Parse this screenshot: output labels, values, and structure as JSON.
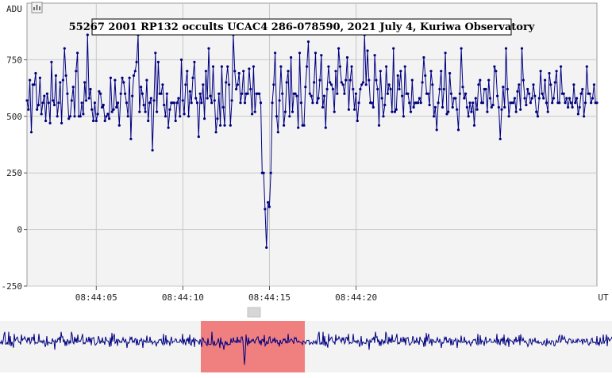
{
  "chart_data": {
    "type": "line",
    "title": "55267 2001 RP132 occults UCAC4 286-078590, 2021 July 4, Kuriwa Observatory",
    "ylabel": "ADU",
    "xlabel": "UT",
    "ylim": [
      -250,
      1000
    ],
    "y_ticks": [
      -250,
      0,
      250,
      500,
      750
    ],
    "x_tick_labels": [
      "08:44:05",
      "08:44:10",
      "08:44:15",
      "08:44:20"
    ],
    "grid": true,
    "colors": {
      "series": "#000080",
      "plot_bg": "#f3f3f3",
      "overview_bg": "#f3f3f3",
      "selection": "#f08080"
    },
    "series": [
      {
        "x_start_seconds": 1.0,
        "x_step_seconds": 0.0833,
        "values": [
          570,
          530,
          660,
          430,
          640,
          640,
          690,
          530,
          550,
          670,
          510,
          560,
          590,
          480,
          600,
          560,
          470,
          740,
          570,
          550,
          680,
          500,
          560,
          650,
          470,
          660,
          800,
          680,
          600,
          490,
          500,
          570,
          630,
          500,
          700,
          780,
          500,
          500,
          560,
          510,
          650,
          570,
          860,
          580,
          620,
          530,
          480,
          560,
          480,
          510,
          610,
          600,
          540,
          550,
          480,
          500,
          510,
          490,
          670,
          520,
          530,
          660,
          540,
          560,
          460,
          600,
          670,
          650,
          600,
          560,
          500,
          670,
          400,
          590,
          680,
          700,
          740,
          860,
          520,
          630,
          600,
          550,
          520,
          660,
          480,
          560,
          580,
          350,
          570,
          780,
          520,
          740,
          600,
          600,
          640,
          550,
          500,
          600,
          450,
          530,
          560,
          560,
          560,
          480,
          560,
          580,
          500,
          750,
          570,
          510,
          640,
          700,
          500,
          610,
          560,
          670,
          740,
          580,
          560,
          410,
          600,
          560,
          640,
          490,
          700,
          580,
          800,
          590,
          560,
          720,
          570,
          430,
          490,
          600,
          460,
          720,
          540,
          460,
          650,
          720,
          640,
          460,
          570,
          860,
          700,
          620,
          640,
          690,
          560,
          600,
          700,
          560,
          600,
          600,
          710,
          620,
          510,
          720,
          520,
          600,
          600,
          600,
          560,
          250,
          250,
          90,
          -80,
          120,
          100,
          250,
          560,
          640,
          780,
          500,
          430,
          570,
          720,
          600,
          460,
          520,
          650,
          700,
          500,
          760,
          520,
          600,
          600,
          590,
          450,
          780,
          560,
          460,
          460,
          630,
          720,
          830,
          600,
          590,
          560,
          650,
          780,
          560,
          580,
          660,
          770,
          540,
          590,
          450,
          620,
          720,
          650,
          640,
          620,
          520,
          700,
          600,
          800,
          720,
          650,
          640,
          600,
          660,
          760,
          530,
          660,
          720,
          620,
          530,
          600,
          480,
          560,
          620,
          640,
          650,
          860,
          640,
          790,
          660,
          560,
          560,
          540,
          770,
          660,
          620,
          460,
          700,
          580,
          500,
          550,
          720,
          600,
          640,
          620,
          520,
          800,
          520,
          530,
          680,
          620,
          700,
          590,
          500,
          720,
          600,
          600,
          560,
          520,
          660,
          540,
          560,
          560,
          560,
          580,
          560,
          650,
          760,
          680,
          600,
          600,
          550,
          700,
          640,
          500,
          540,
          440,
          560,
          620,
          700,
          540,
          620,
          780,
          510,
          520,
          690,
          600,
          540,
          580,
          580,
          530,
          440,
          600,
          800,
          630,
          580,
          600,
          540,
          500,
          560,
          520,
          560,
          460,
          580,
          530,
          640,
          660,
          560,
          560,
          620,
          620,
          520,
          660,
          580,
          540,
          550,
          720,
          700,
          590,
          540,
          400,
          530,
          630,
          540,
          800,
          620,
          500,
          560,
          560,
          560,
          580,
          520,
          610,
          640,
          530,
          800,
          660,
          580,
          550,
          620,
          600,
          560,
          580,
          640,
          590,
          520,
          500,
          580,
          700,
          600,
          580,
          660,
          560,
          520,
          690,
          640,
          560,
          580,
          650,
          700,
          560,
          560,
          720,
          600,
          600,
          560,
          580,
          540,
          580,
          560,
          540,
          640,
          560,
          580,
          510,
          540,
          600,
          620,
          500,
          560,
          720,
          600,
          600,
          560,
          580,
          640,
          560,
          560
        ]
      }
    ]
  },
  "toolbar": {
    "zoom_icon": "bar-chart-zoom-icon"
  }
}
